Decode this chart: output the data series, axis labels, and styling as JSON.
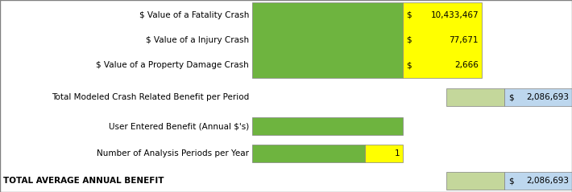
{
  "rows": [
    {
      "label": "$ Value of a Fatality Crash",
      "type": "crash",
      "dollar_sign": "$",
      "value_text": "10,433,467",
      "row_idx": 0
    },
    {
      "label": "$ Value of a Injury Crash",
      "type": "crash",
      "dollar_sign": "$",
      "value_text": "77,671",
      "row_idx": 1
    },
    {
      "label": "$ Value of a Property Damage Crash",
      "type": "crash",
      "dollar_sign": "$",
      "value_text": "2,666",
      "row_idx": 2
    },
    {
      "label": "Total Modeled Crash Related Benefit per Period",
      "type": "total_period",
      "dollar_sign": "$",
      "value_text": "2,086,693",
      "row_idx": 3
    },
    {
      "label": "User Entered Benefit (Annual $'s)",
      "type": "user_benefit",
      "dollar_sign": "",
      "value_text": "",
      "row_idx": 4
    },
    {
      "label": "Number of Analysis Periods per Year",
      "type": "num_periods",
      "dollar_sign": "",
      "value_text": "1",
      "row_idx": 5
    },
    {
      "label": "TOTAL AVERAGE ANNUAL BENEFIT",
      "type": "total_annual",
      "dollar_sign": "$",
      "value_text": "2,086,693",
      "row_idx": 6
    }
  ],
  "color_green": "#6EB43F",
  "color_yellow": "#FFFF00",
  "color_tan": "#C4D79B",
  "color_blue": "#BDD7EE",
  "color_border": "#808080",
  "bg_color": "#FFFFFF",
  "fig_width": 7.1,
  "fig_height": 2.39,
  "dpi": 100
}
